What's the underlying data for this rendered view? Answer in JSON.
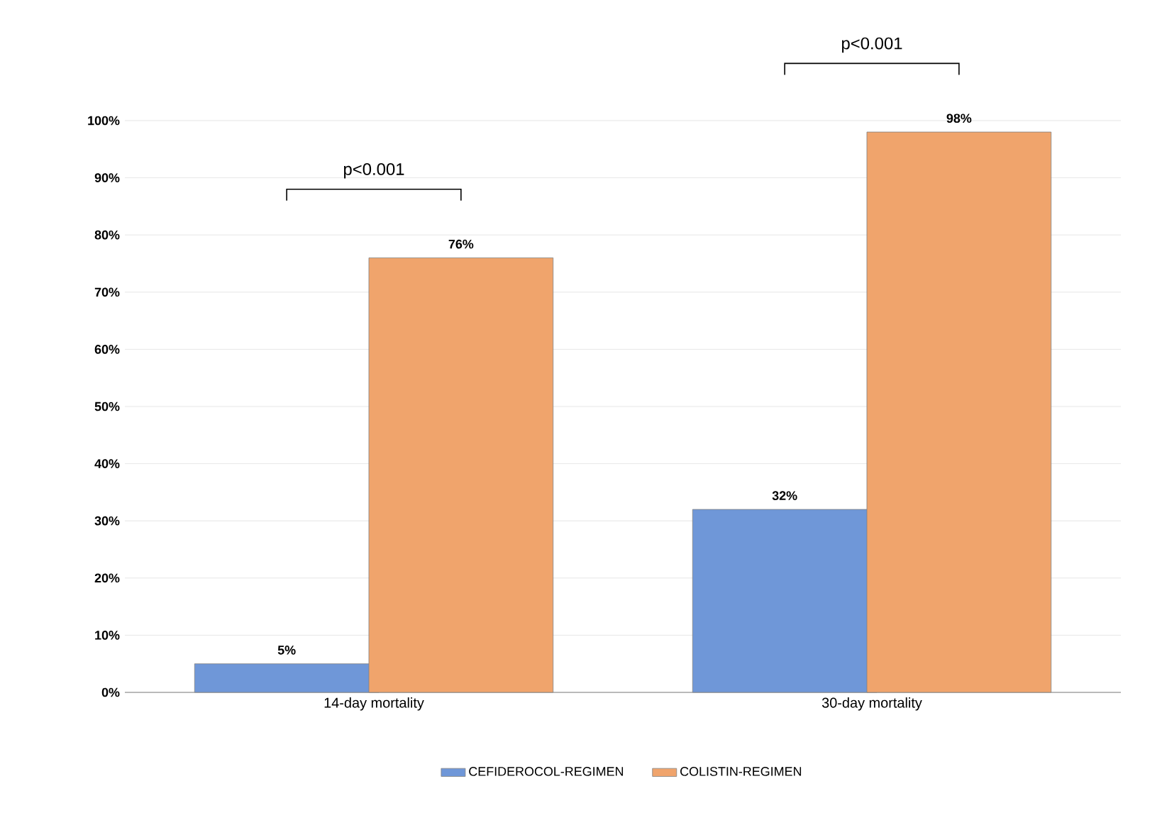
{
  "chart_data": {
    "type": "bar",
    "categories": [
      "14-day mortality",
      "30-day mortality"
    ],
    "series": [
      {
        "name": "CEFIDEROCOL-REGIMEN",
        "color": "#6f97d8",
        "values": [
          5,
          32
        ],
        "value_labels": [
          "5%",
          "32%"
        ]
      },
      {
        "name": "COLISTIN-REGIMEN",
        "color": "#f0a46c",
        "values": [
          76,
          98
        ],
        "value_labels": [
          "76%",
          "98%"
        ]
      }
    ],
    "ylim": [
      0,
      100
    ],
    "yticks": [
      {
        "value": 0,
        "label": "0%"
      },
      {
        "value": 10,
        "label": "10%"
      },
      {
        "value": 20,
        "label": "20%"
      },
      {
        "value": 30,
        "label": "30%"
      },
      {
        "value": 40,
        "label": "40%"
      },
      {
        "value": 50,
        "label": "50%"
      },
      {
        "value": 60,
        "label": "60%"
      },
      {
        "value": 70,
        "label": "70%"
      },
      {
        "value": 80,
        "label": "80%"
      },
      {
        "value": 90,
        "label": "90%"
      },
      {
        "value": 100,
        "label": "100%"
      }
    ],
    "grid": "y",
    "legend": "bottom",
    "annotations": [
      "p<0.001",
      "p<0.001"
    ]
  }
}
